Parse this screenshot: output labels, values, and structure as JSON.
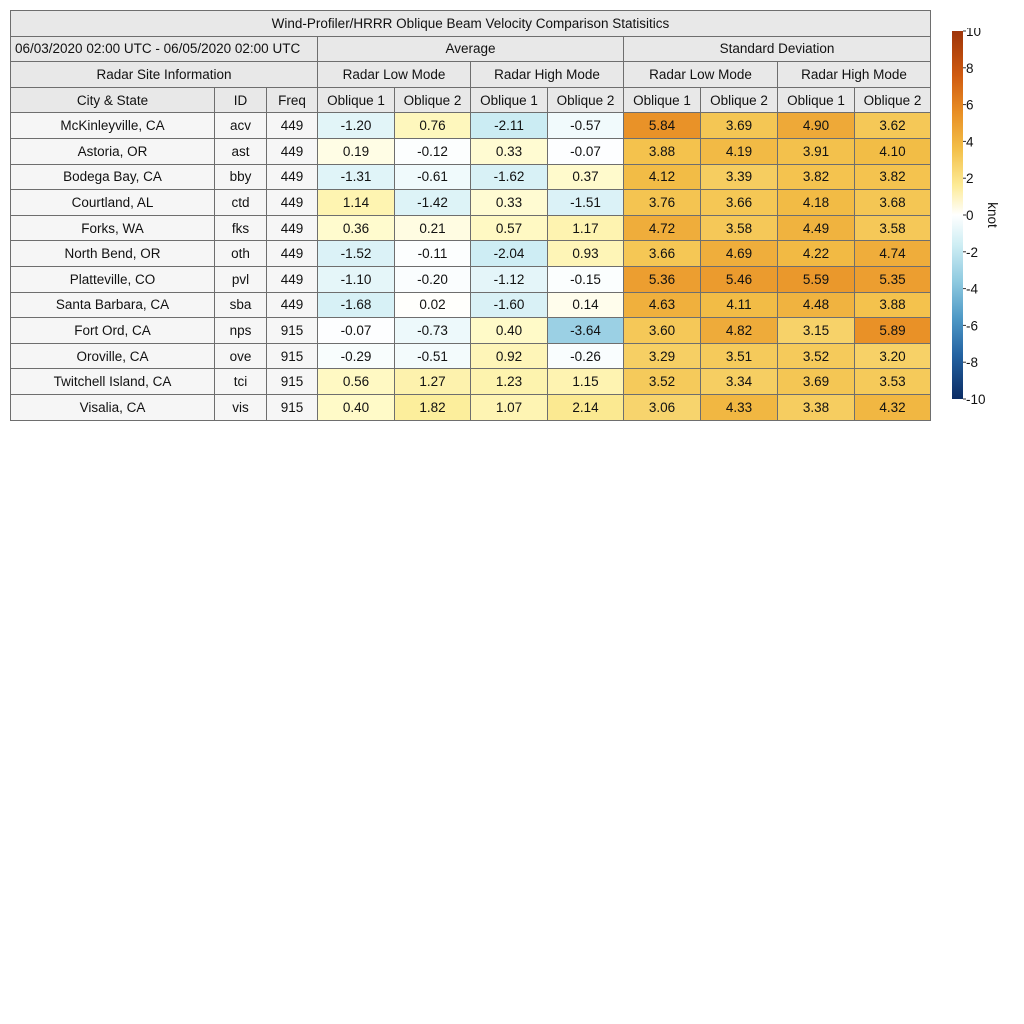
{
  "title": "Wind-Profiler/HRRR Oblique Beam Velocity Comparison Statisitics",
  "period": "06/03/2020 02:00 UTC - 06/05/2020 02:00 UTC",
  "groups": {
    "average": "Average",
    "std": "Standard Deviation",
    "site_info": "Radar Site Information"
  },
  "modes": {
    "low": "Radar Low Mode",
    "high": "Radar High Mode"
  },
  "columns": {
    "city": "City & State",
    "id": "ID",
    "freq": "Freq",
    "oblique1": "Oblique 1",
    "oblique2": "Oblique 2"
  },
  "colorbar": {
    "label": "knot",
    "min": -10,
    "max": 10,
    "ticks": [
      "10",
      "8",
      "6",
      "4",
      "2",
      "0",
      "-2",
      "-4",
      "-6",
      "-8",
      "-10"
    ]
  },
  "chart_data": {
    "type": "table",
    "title": "Wind-Profiler/HRRR Oblique Beam Velocity Comparison Statisitics",
    "unit": "knot",
    "scale": [
      -10,
      10
    ],
    "columns": [
      "Average Low Oblique 1",
      "Average Low Oblique 2",
      "Average High Oblique 1",
      "Average High Oblique 2",
      "Std Low Oblique 1",
      "Std Low Oblique 2",
      "Std High Oblique 1",
      "Std High Oblique 2"
    ],
    "rows": [
      {
        "city": "McKinleyville, CA",
        "id": "acv",
        "freq": "449",
        "values": [
          "-1.20",
          "0.76",
          "-2.11",
          "-0.57",
          "5.84",
          "3.69",
          "4.90",
          "3.62"
        ]
      },
      {
        "city": "Astoria, OR",
        "id": "ast",
        "freq": "449",
        "values": [
          "0.19",
          "-0.12",
          "0.33",
          "-0.07",
          "3.88",
          "4.19",
          "3.91",
          "4.10"
        ]
      },
      {
        "city": "Bodega Bay, CA",
        "id": "bby",
        "freq": "449",
        "values": [
          "-1.31",
          "-0.61",
          "-1.62",
          "0.37",
          "4.12",
          "3.39",
          "3.82",
          "3.82"
        ]
      },
      {
        "city": "Courtland, AL",
        "id": "ctd",
        "freq": "449",
        "values": [
          "1.14",
          "-1.42",
          "0.33",
          "-1.51",
          "3.76",
          "3.66",
          "4.18",
          "3.68"
        ]
      },
      {
        "city": "Forks, WA",
        "id": "fks",
        "freq": "449",
        "values": [
          "0.36",
          "0.21",
          "0.57",
          "1.17",
          "4.72",
          "3.58",
          "4.49",
          "3.58"
        ]
      },
      {
        "city": "North Bend, OR",
        "id": "oth",
        "freq": "449",
        "values": [
          "-1.52",
          "-0.11",
          "-2.04",
          "0.93",
          "3.66",
          "4.69",
          "4.22",
          "4.74"
        ]
      },
      {
        "city": "Platteville, CO",
        "id": "pvl",
        "freq": "449",
        "values": [
          "-1.10",
          "-0.20",
          "-1.12",
          "-0.15",
          "5.36",
          "5.46",
          "5.59",
          "5.35"
        ]
      },
      {
        "city": "Santa Barbara, CA",
        "id": "sba",
        "freq": "449",
        "values": [
          "-1.68",
          "0.02",
          "-1.60",
          "0.14",
          "4.63",
          "4.11",
          "4.48",
          "3.88"
        ]
      },
      {
        "city": "Fort Ord, CA",
        "id": "nps",
        "freq": "915",
        "values": [
          "-0.07",
          "-0.73",
          "0.40",
          "-3.64",
          "3.60",
          "4.82",
          "3.15",
          "5.89"
        ]
      },
      {
        "city": "Oroville, CA",
        "id": "ove",
        "freq": "915",
        "values": [
          "-0.29",
          "-0.51",
          "0.92",
          "-0.26",
          "3.29",
          "3.51",
          "3.52",
          "3.20"
        ]
      },
      {
        "city": "Twitchell Island, CA",
        "id": "tci",
        "freq": "915",
        "values": [
          "0.56",
          "1.27",
          "1.23",
          "1.15",
          "3.52",
          "3.34",
          "3.69",
          "3.53"
        ]
      },
      {
        "city": "Visalia, CA",
        "id": "vis",
        "freq": "915",
        "values": [
          "0.40",
          "1.82",
          "1.07",
          "2.14",
          "3.06",
          "4.33",
          "3.38",
          "4.32"
        ]
      }
    ]
  }
}
